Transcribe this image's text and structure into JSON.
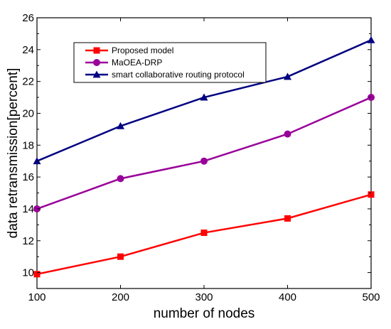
{
  "chart_data": {
    "type": "line",
    "title": "",
    "xlabel": "number of nodes",
    "ylabel": "data retransmission[percent]",
    "x": [
      100,
      200,
      300,
      400,
      500
    ],
    "xlim": [
      100,
      500
    ],
    "ylim": [
      9,
      26
    ],
    "xticks": [
      "100",
      "200",
      "300",
      "400",
      "500"
    ],
    "yticks": [
      "10",
      "12",
      "14",
      "16",
      "18",
      "20",
      "22",
      "24",
      "26"
    ],
    "grid": false,
    "legend_position": "top-left",
    "series": [
      {
        "name": "Proposed model",
        "color": "#ff0000",
        "marker": "square",
        "values": [
          9.9,
          11.0,
          12.5,
          13.4,
          14.9
        ]
      },
      {
        "name": "MaOEA-DRP",
        "color": "#990099",
        "marker": "circle",
        "values": [
          14.0,
          15.9,
          17.0,
          18.7,
          21.0
        ]
      },
      {
        "name": "smart collaborative routing protocol",
        "color": "#000080",
        "marker": "triangle",
        "values": [
          17.0,
          19.2,
          21.0,
          22.3,
          24.6
        ]
      }
    ]
  }
}
